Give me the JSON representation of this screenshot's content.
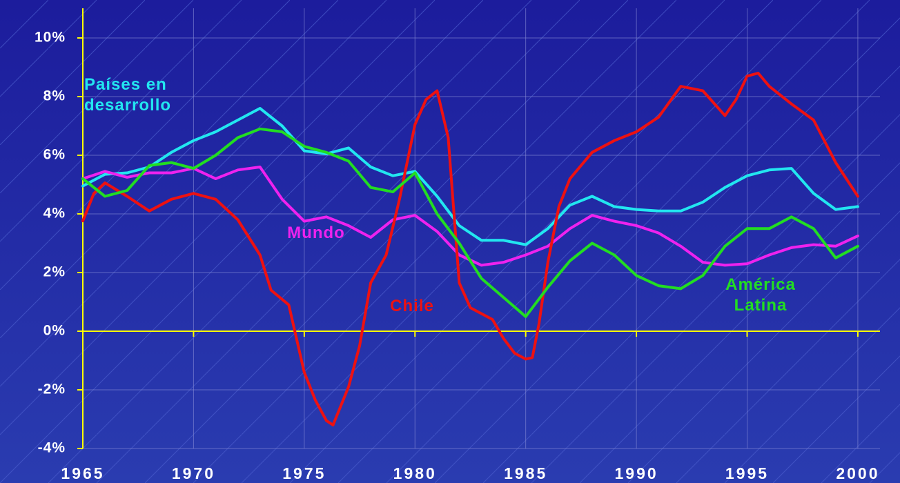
{
  "chart_data": {
    "type": "line",
    "x": [
      1965,
      1965.5,
      1966,
      1967,
      1968,
      1969,
      1970,
      1971,
      1972,
      1973,
      1973.5,
      1974.3,
      1975,
      1975.5,
      1976,
      1976.3,
      1977,
      1977.5,
      1978,
      1978.7,
      1979.3,
      1980,
      1980.5,
      1981,
      1981.5,
      1982,
      1982.5,
      1983,
      1983.5,
      1984,
      1984.5,
      1985,
      1985.3,
      1985.6,
      1986,
      1986.5,
      1987,
      1988,
      1989,
      1990,
      1991,
      1992,
      1993,
      1994,
      1994.5,
      1995,
      1995.5,
      1996,
      1997,
      1998,
      1999,
      2000
    ],
    "series": [
      {
        "name": "Países en desarrollo",
        "color": "#22e6f0",
        "x": [
          1965,
          1966,
          1967,
          1968,
          1969,
          1970,
          1971,
          1972,
          1973,
          1974,
          1975,
          1976,
          1977,
          1978,
          1979,
          1980,
          1981,
          1982,
          1983,
          1984,
          1985,
          1986,
          1987,
          1988,
          1989,
          1990,
          1991,
          1992,
          1993,
          1994,
          1995,
          1996,
          1997,
          1998,
          1999,
          2000
        ],
        "values": [
          4.95,
          5.35,
          5.4,
          5.6,
          6.1,
          6.5,
          6.8,
          7.2,
          7.6,
          7.0,
          6.15,
          6.05,
          6.25,
          5.6,
          5.3,
          5.45,
          4.6,
          3.6,
          3.1,
          3.1,
          2.95,
          3.5,
          4.3,
          4.6,
          4.25,
          4.15,
          4.1,
          4.1,
          4.4,
          4.9,
          5.3,
          5.5,
          5.55,
          4.7,
          4.15,
          4.25
        ]
      },
      {
        "name": "Mundo",
        "color": "#ee22ee",
        "x": [
          1965,
          1966,
          1967,
          1968,
          1969,
          1970,
          1971,
          1972,
          1973,
          1974,
          1975,
          1976,
          1977,
          1978,
          1979,
          1980,
          1981,
          1982,
          1983,
          1984,
          1985,
          1986,
          1987,
          1988,
          1989,
          1990,
          1991,
          1992,
          1993,
          1994,
          1995,
          1996,
          1997,
          1998,
          1999,
          2000
        ],
        "values": [
          5.2,
          5.45,
          5.25,
          5.4,
          5.4,
          5.55,
          5.2,
          5.5,
          5.6,
          4.5,
          3.75,
          3.9,
          3.6,
          3.2,
          3.8,
          3.95,
          3.4,
          2.6,
          2.25,
          2.35,
          2.6,
          2.9,
          3.5,
          3.95,
          3.75,
          3.6,
          3.35,
          2.9,
          2.35,
          2.25,
          2.3,
          2.6,
          2.85,
          2.95,
          2.9,
          3.25
        ]
      },
      {
        "name": "Chile",
        "color": "#ee1111",
        "values": [
          3.76,
          4.7,
          5.06,
          4.6,
          4.1,
          4.5,
          4.7,
          4.5,
          3.8,
          2.6,
          1.4,
          0.9,
          -1.4,
          -2.35,
          -3.05,
          -3.2,
          -1.9,
          -0.5,
          1.65,
          2.6,
          4.5,
          7.05,
          7.9,
          8.2,
          6.6,
          1.65,
          0.8,
          0.6,
          0.4,
          -0.25,
          -0.75,
          -0.95,
          -0.9,
          0.25,
          2.35,
          4.25,
          5.2,
          6.1,
          6.5,
          6.8,
          7.3,
          8.35,
          8.2,
          7.35,
          7.9,
          8.7,
          8.8,
          8.35,
          7.75,
          7.2,
          5.75,
          4.6
        ]
      },
      {
        "name": "América Latina",
        "color": "#22dd22",
        "x": [
          1965,
          1966,
          1967,
          1968,
          1969,
          1970,
          1971,
          1972,
          1973,
          1974,
          1975,
          1976,
          1977,
          1978,
          1979,
          1980,
          1981,
          1982,
          1983,
          1984,
          1985,
          1986,
          1987,
          1988,
          1989,
          1990,
          1991,
          1992,
          1993,
          1994,
          1995,
          1996,
          1997,
          1998,
          1999,
          2000
        ],
        "values": [
          5.2,
          4.6,
          4.8,
          5.65,
          5.75,
          5.55,
          6.0,
          6.6,
          6.9,
          6.8,
          6.3,
          6.1,
          5.8,
          4.9,
          4.75,
          5.4,
          4.0,
          3.0,
          1.8,
          1.15,
          0.5,
          1.5,
          2.4,
          3.0,
          2.6,
          1.9,
          1.55,
          1.45,
          1.9,
          2.9,
          3.5,
          3.5,
          3.9,
          3.5,
          2.5,
          2.9
        ]
      }
    ],
    "xlim": [
      1965,
      2001
    ],
    "xticks": [
      1965,
      1970,
      1975,
      1980,
      1985,
      1990,
      1995,
      2000
    ],
    "ylim": [
      -4,
      10
    ],
    "yticks": [
      {
        "value": -4,
        "label": "-4%"
      },
      {
        "value": -2,
        "label": "-2%"
      },
      {
        "value": 0,
        "label": "0%"
      },
      {
        "value": 2,
        "label": "2%"
      },
      {
        "value": 4,
        "label": "4%"
      },
      {
        "value": 6,
        "label": "6%"
      },
      {
        "value": 8,
        "label": "8%"
      },
      {
        "value": 10,
        "label": "10%"
      }
    ],
    "grid": true
  }
}
